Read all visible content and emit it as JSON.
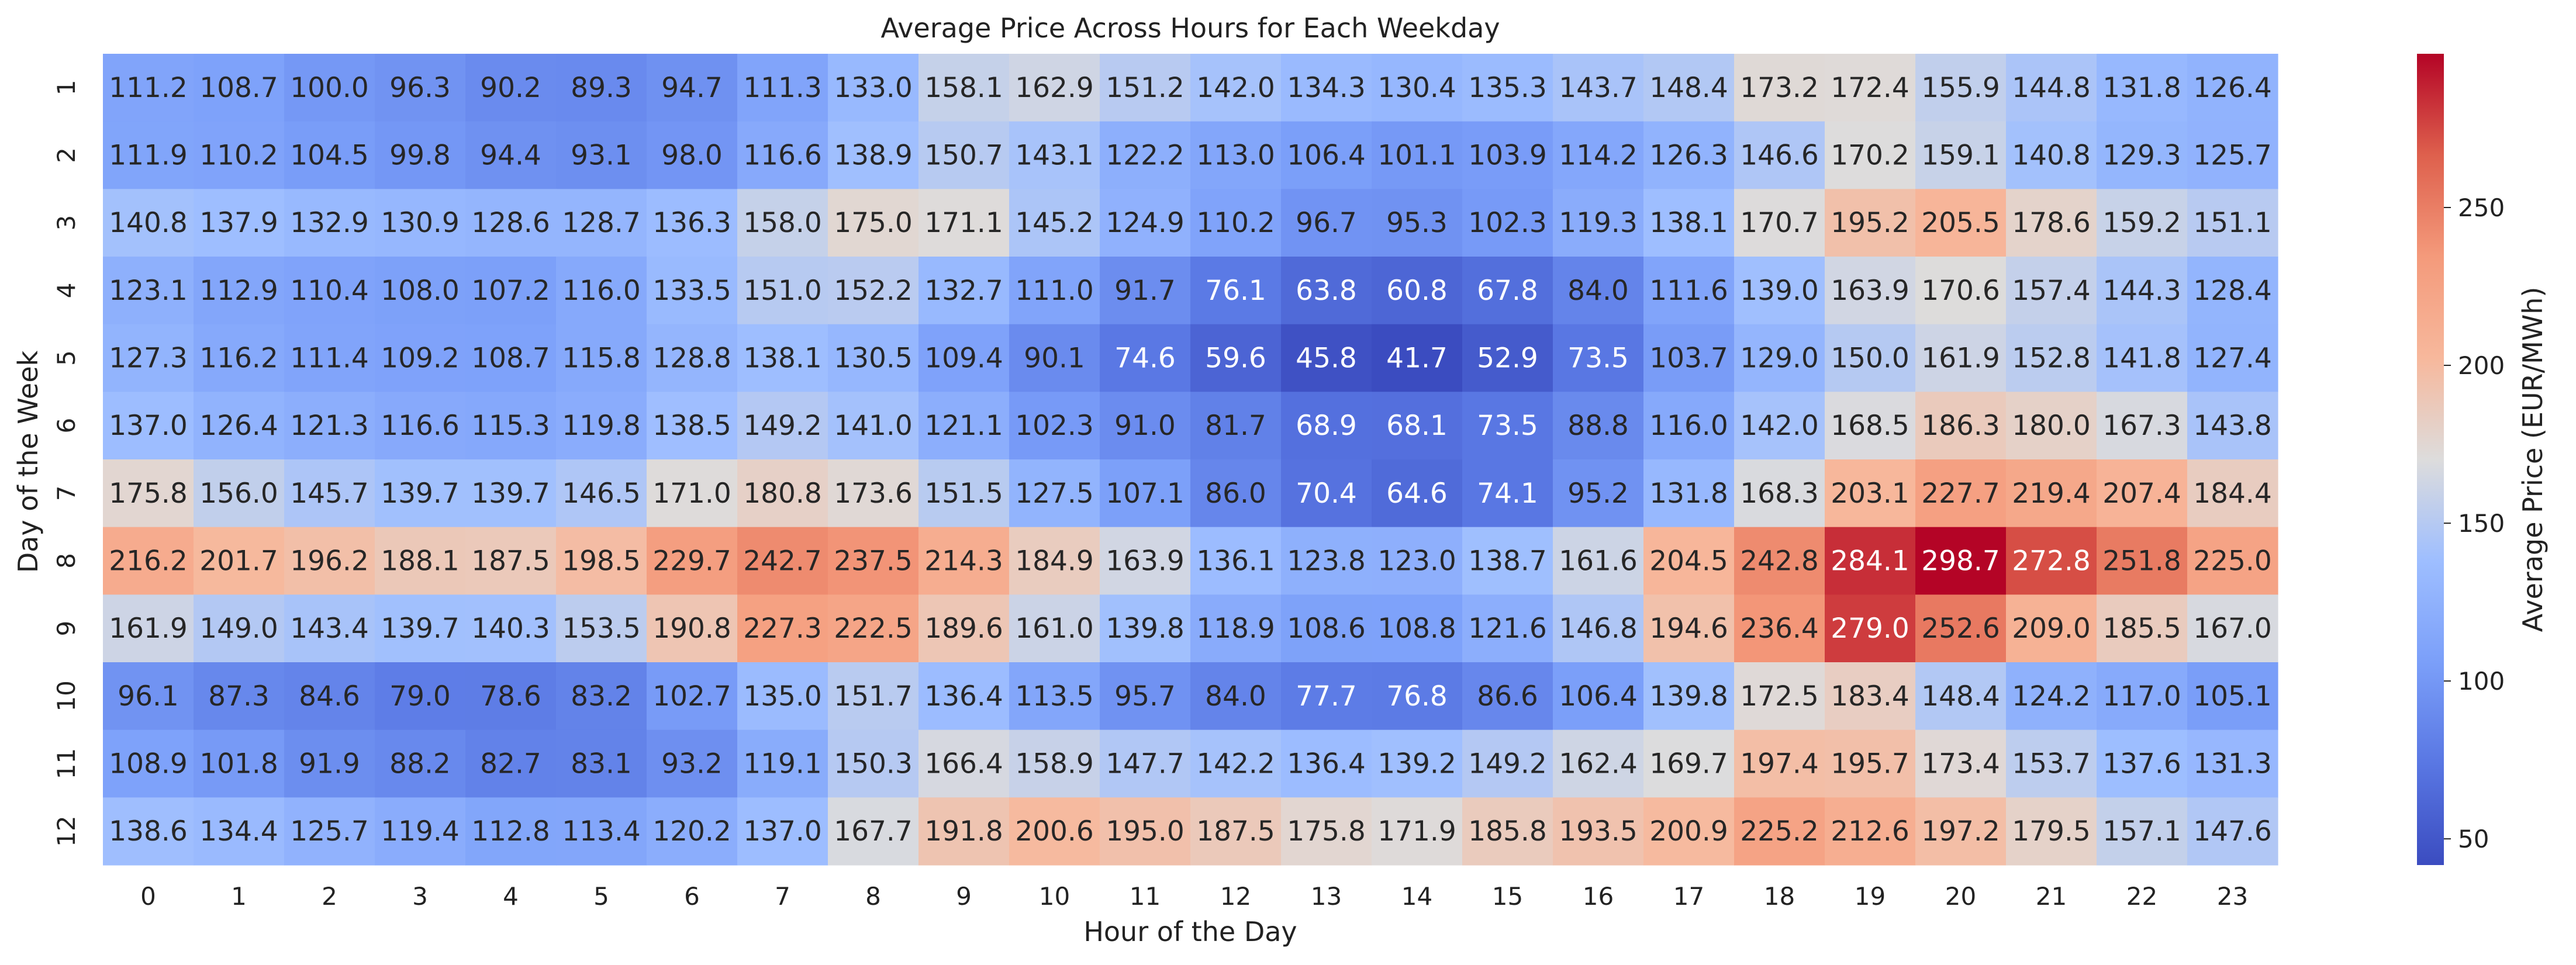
{
  "chart_data": {
    "type": "heatmap",
    "title": "Average Price Across Hours for Each Weekday",
    "xlabel": "Hour of the Day",
    "ylabel": "Day of the Week",
    "x_categories": [
      "0",
      "1",
      "2",
      "3",
      "4",
      "5",
      "6",
      "7",
      "8",
      "9",
      "10",
      "11",
      "12",
      "13",
      "14",
      "15",
      "16",
      "17",
      "18",
      "19",
      "20",
      "21",
      "22",
      "23"
    ],
    "y_categories": [
      "1",
      "2",
      "3",
      "4",
      "5",
      "6",
      "7",
      "8",
      "9",
      "10",
      "11",
      "12"
    ],
    "values": [
      [
        111.2,
        108.7,
        100.0,
        96.3,
        90.2,
        89.3,
        94.7,
        111.3,
        133.0,
        158.1,
        162.9,
        151.2,
        142.0,
        134.3,
        130.4,
        135.3,
        143.7,
        148.4,
        173.2,
        172.4,
        155.9,
        144.8,
        131.8,
        126.4
      ],
      [
        111.9,
        110.2,
        104.5,
        99.8,
        94.4,
        93.1,
        98.0,
        116.6,
        138.9,
        150.7,
        143.1,
        122.2,
        113.0,
        106.4,
        101.1,
        103.9,
        114.2,
        126.3,
        146.6,
        170.2,
        159.1,
        140.8,
        129.3,
        125.7
      ],
      [
        140.8,
        137.9,
        132.9,
        130.9,
        128.6,
        128.7,
        136.3,
        158.0,
        175.0,
        171.1,
        145.2,
        124.9,
        110.2,
        96.7,
        95.3,
        102.3,
        119.3,
        138.1,
        170.7,
        195.2,
        205.5,
        178.6,
        159.2,
        151.1
      ],
      [
        123.1,
        112.9,
        110.4,
        108.0,
        107.2,
        116.0,
        133.5,
        151.0,
        152.2,
        132.7,
        111.0,
        91.7,
        76.1,
        63.8,
        60.8,
        67.8,
        84.0,
        111.6,
        139.0,
        163.9,
        170.6,
        157.4,
        144.3,
        128.4
      ],
      [
        127.3,
        116.2,
        111.4,
        109.2,
        108.7,
        115.8,
        128.8,
        138.1,
        130.5,
        109.4,
        90.1,
        74.6,
        59.6,
        45.8,
        41.7,
        52.9,
        73.5,
        103.7,
        129.0,
        150.0,
        161.9,
        152.8,
        141.8,
        127.4
      ],
      [
        137.0,
        126.4,
        121.3,
        116.6,
        115.3,
        119.8,
        138.5,
        149.2,
        141.0,
        121.1,
        102.3,
        91.0,
        81.7,
        68.9,
        68.1,
        73.5,
        88.8,
        116.0,
        142.0,
        168.5,
        186.3,
        180.0,
        167.3,
        143.8
      ],
      [
        175.8,
        156.0,
        145.7,
        139.7,
        139.7,
        146.5,
        171.0,
        180.8,
        173.6,
        151.5,
        127.5,
        107.1,
        86.0,
        70.4,
        64.6,
        74.1,
        95.2,
        131.8,
        168.3,
        203.1,
        227.7,
        219.4,
        207.4,
        184.4
      ],
      [
        216.2,
        201.7,
        196.2,
        188.1,
        187.5,
        198.5,
        229.7,
        242.7,
        237.5,
        214.3,
        184.9,
        163.9,
        136.1,
        123.8,
        123.0,
        138.7,
        161.6,
        204.5,
        242.8,
        284.1,
        298.7,
        272.8,
        251.8,
        225.0
      ],
      [
        161.9,
        149.0,
        143.4,
        139.7,
        140.3,
        153.5,
        190.8,
        227.3,
        222.5,
        189.6,
        161.0,
        139.8,
        118.9,
        108.6,
        108.8,
        121.6,
        146.8,
        194.6,
        236.4,
        279.0,
        252.6,
        209.0,
        185.5,
        167.0
      ],
      [
        96.1,
        87.3,
        84.6,
        79.0,
        78.6,
        83.2,
        102.7,
        135.0,
        151.7,
        136.4,
        113.5,
        95.7,
        84.0,
        77.7,
        76.8,
        86.6,
        106.4,
        139.8,
        172.5,
        183.4,
        148.4,
        124.2,
        117.0,
        105.1
      ],
      [
        108.9,
        101.8,
        91.9,
        88.2,
        82.7,
        83.1,
        93.2,
        119.1,
        150.3,
        166.4,
        158.9,
        147.7,
        142.2,
        136.4,
        139.2,
        149.2,
        162.4,
        169.7,
        197.4,
        195.7,
        173.4,
        153.7,
        137.6,
        131.3
      ],
      [
        138.6,
        134.4,
        125.7,
        119.4,
        112.8,
        113.4,
        120.2,
        137.0,
        167.7,
        191.8,
        200.6,
        195.0,
        187.5,
        175.8,
        171.9,
        185.8,
        193.5,
        200.9,
        225.2,
        212.6,
        197.2,
        179.5,
        157.1,
        147.6
      ]
    ],
    "value_format": "0.1f",
    "vmin": 41.7,
    "vmax": 298.7,
    "colormap": "coolwarm",
    "colorbar": {
      "label": "Average Price (EUR/MWh)",
      "ticks": [
        50,
        100,
        150,
        200,
        250
      ]
    },
    "grid": false
  }
}
